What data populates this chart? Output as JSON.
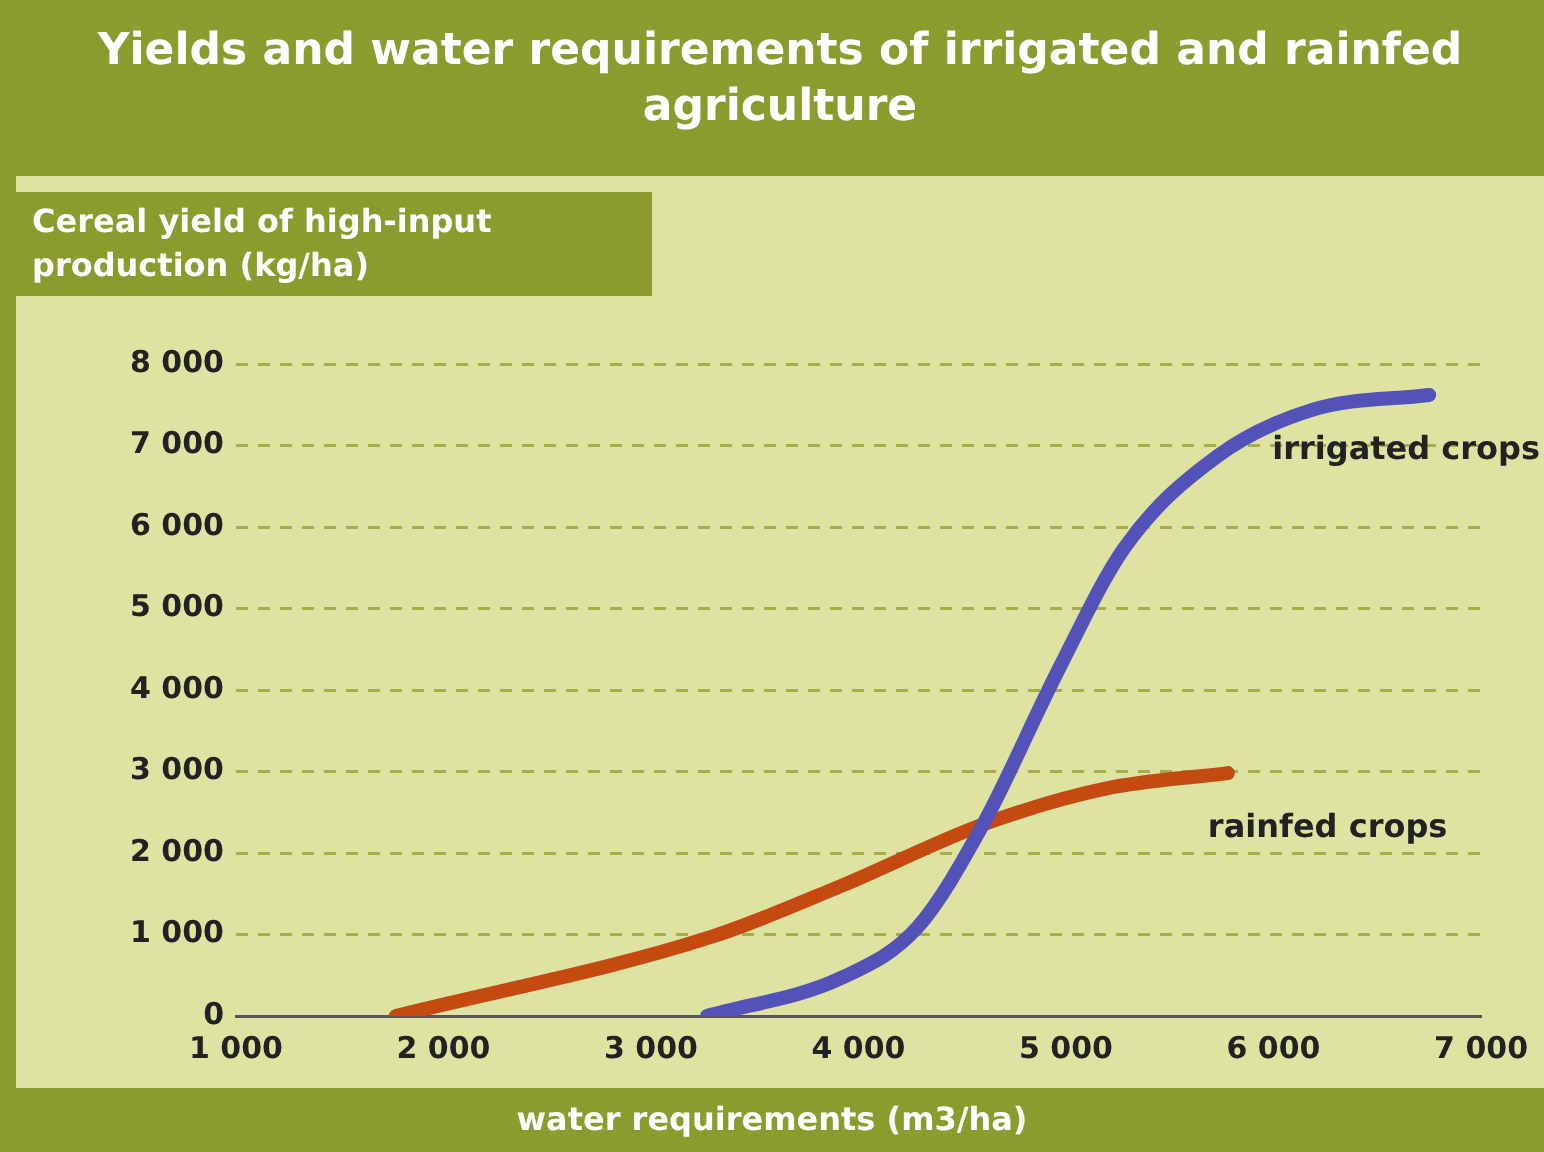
{
  "chart_data": {
    "type": "line",
    "title": "Yields and water requirements of irrigated and rainfed agriculture",
    "ylabel": "Cereal yield of high-input production (kg/ha)",
    "xlabel": "water requirements (m3/ha)",
    "series": [
      {
        "name": "irrigated crops",
        "color": "#5252b8",
        "x": [
          3270,
          3920,
          4285,
          4600,
          4960,
          5280,
          5730,
          6190,
          6750
        ],
        "values": [
          0,
          470,
          1090,
          2350,
          4230,
          5740,
          6870,
          7440,
          7620
        ]
      },
      {
        "name": "rainfed crops",
        "color": "#c44a12",
        "x": [
          1770,
          3290,
          3920,
          4600,
          5190,
          5780
        ],
        "values": [
          0,
          970,
          1600,
          2350,
          2790,
          2980
        ]
      }
    ],
    "xlim": [
      1000,
      7000
    ],
    "xticks": [
      {
        "value": 1000,
        "label": "1 000"
      },
      {
        "value": 2000,
        "label": "2 000"
      },
      {
        "value": 3000,
        "label": "3 000"
      },
      {
        "value": 4000,
        "label": "4 000"
      },
      {
        "value": 5000,
        "label": "5 000"
      },
      {
        "value": 6000,
        "label": "6 000"
      },
      {
        "value": 7000,
        "label": "7 000"
      }
    ],
    "ylim": [
      0,
      8000
    ],
    "yticks": [
      0,
      {
        "value": 1000,
        "label": "1 000"
      },
      {
        "value": 2000,
        "label": "2 000"
      },
      {
        "value": 3000,
        "label": "3 000"
      },
      {
        "value": 4000,
        "label": "4 000"
      },
      {
        "value": 5000,
        "label": "5 000"
      },
      {
        "value": 6000,
        "label": "6 000"
      },
      {
        "value": 7000,
        "label": "7 000"
      },
      {
        "value": 8000,
        "label": "8 000"
      }
    ],
    "grid": "y",
    "legend": false,
    "marker": "none",
    "line_style": "solid"
  }
}
